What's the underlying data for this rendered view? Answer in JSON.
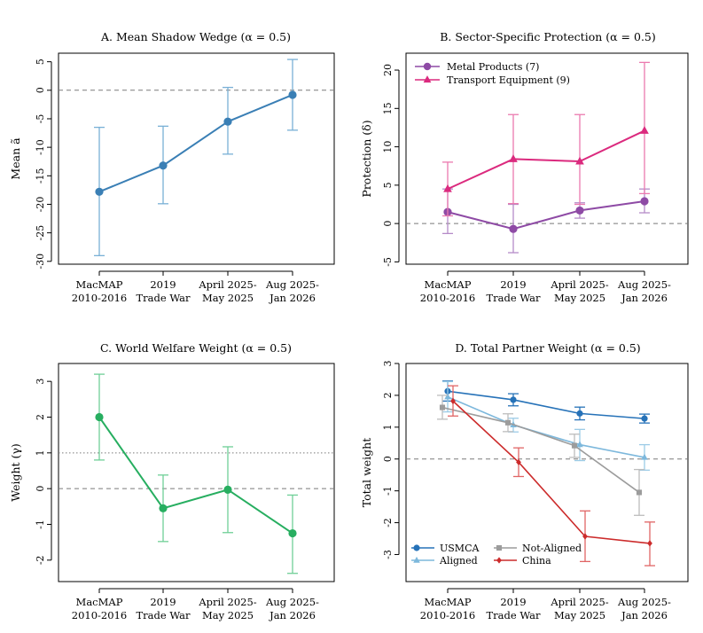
{
  "chart_data": [
    {
      "panel": "A",
      "type": "line",
      "title": "A. Mean Shadow Wedge (α = 0.5)",
      "ylabel": "Mean ã",
      "categories": [
        [
          "MacMAP",
          "2010-2016"
        ],
        [
          "2019",
          "Trade War"
        ],
        [
          "April 2025-",
          "May 2025"
        ],
        [
          "Aug 2025-",
          "Jan 2026"
        ]
      ],
      "ylim": [
        -30.5,
        6.5
      ],
      "yticks": [
        -30,
        -25,
        -20,
        -15,
        -10,
        -5,
        0,
        5
      ],
      "ref_lines": [
        {
          "y": 0,
          "style": "dashed"
        }
      ],
      "series": [
        {
          "name": "Mean shadow wedge",
          "color": "#3a7fb5",
          "err_color": "#79b0d6",
          "marker": "circle",
          "values": [
            -17.8,
            -13.2,
            -5.5,
            -0.8
          ],
          "lower": [
            -29.0,
            -19.9,
            -11.2,
            -7.0
          ],
          "upper": [
            -6.5,
            -6.3,
            0.5,
            5.4
          ]
        }
      ]
    },
    {
      "panel": "B",
      "type": "line",
      "title": "B. Sector-Specific Protection (α = 0.5)",
      "ylabel": "Protection (δ)",
      "categories": [
        [
          "MacMAP",
          "2010-2016"
        ],
        [
          "2019",
          "Trade War"
        ],
        [
          "April 2025-",
          "May 2025"
        ],
        [
          "Aug 2025-",
          "Jan 2026"
        ]
      ],
      "ylim": [
        -5.3,
        22.2
      ],
      "yticks": [
        -5,
        0,
        5,
        10,
        15,
        20
      ],
      "ref_lines": [
        {
          "y": 0,
          "style": "dashed"
        }
      ],
      "legend_position": "top-left",
      "series": [
        {
          "name": "Metal Products (7)",
          "color": "#8e4aa5",
          "err_color": "#b58bc8",
          "marker": "circle",
          "values": [
            1.5,
            -0.7,
            1.7,
            2.9
          ],
          "lower": [
            -1.3,
            -3.8,
            0.7,
            1.4
          ],
          "upper": [
            4.5,
            2.5,
            2.7,
            4.5
          ]
        },
        {
          "name": "Transport Equipment (9)",
          "color": "#db2a7e",
          "err_color": "#eb7aaf",
          "marker": "triangle",
          "values": [
            4.5,
            8.4,
            8.1,
            12.1
          ],
          "lower": [
            1.0,
            2.6,
            2.5,
            3.9
          ],
          "upper": [
            8.0,
            14.2,
            14.2,
            21.0
          ]
        }
      ]
    },
    {
      "panel": "C",
      "type": "line",
      "title": "C. World Welfare Weight (α = 0.5)",
      "ylabel": "Weight (γ)",
      "categories": [
        [
          "MacMAP",
          "2010-2016"
        ],
        [
          "2019",
          "Trade War"
        ],
        [
          "April 2025-",
          "May 2025"
        ],
        [
          "Aug 2025-",
          "Jan 2026"
        ]
      ],
      "ylim": [
        -2.6,
        3.5
      ],
      "yticks": [
        -2,
        -1,
        0,
        1,
        2,
        3
      ],
      "ref_lines": [
        {
          "y": 0,
          "style": "dashed"
        },
        {
          "y": 1,
          "style": "dotted"
        }
      ],
      "series": [
        {
          "name": "World welfare weight",
          "color": "#27ae60",
          "err_color": "#6fcf97",
          "marker": "circle",
          "values": [
            2.0,
            -0.55,
            -0.03,
            -1.25
          ],
          "lower": [
            0.8,
            -1.48,
            -1.23,
            -2.37
          ],
          "upper": [
            3.2,
            0.38,
            1.17,
            -0.18
          ]
        }
      ]
    },
    {
      "panel": "D",
      "type": "line",
      "title": "D. Total Partner Weight (α = 0.5)",
      "ylabel": "Total weight",
      "categories": [
        [
          "MacMAP",
          "2010-2016"
        ],
        [
          "2019",
          "Trade War"
        ],
        [
          "April 2025-",
          "May 2025"
        ],
        [
          "Aug 2025-",
          "Jan 2026"
        ]
      ],
      "ylim": [
        -3.85,
        3.0
      ],
      "yticks": [
        -3,
        -2,
        -1,
        0,
        1,
        2,
        3
      ],
      "ref_lines": [
        {
          "y": 0,
          "style": "dashed"
        }
      ],
      "legend_position": "bottom-left",
      "series": [
        {
          "name": "USMCA",
          "color": "#2672b8",
          "err_color": "#2672b8",
          "marker": "circle",
          "offset": 0,
          "values": [
            2.13,
            1.86,
            1.43,
            1.27
          ],
          "lower": [
            1.82,
            1.67,
            1.23,
            1.13
          ],
          "upper": [
            2.45,
            2.05,
            1.63,
            1.41
          ]
        },
        {
          "name": "Aligned",
          "color": "#7db8dc",
          "err_color": "#9ccbe6",
          "marker": "triangle",
          "offset": 0,
          "values": [
            1.95,
            1.07,
            0.45,
            0.05
          ],
          "lower": [
            1.48,
            0.85,
            -0.05,
            -0.35
          ],
          "upper": [
            2.43,
            1.28,
            0.93,
            0.45
          ]
        },
        {
          "name": "Not-Aligned",
          "color": "#9c9c9c",
          "err_color": "#bdbdbd",
          "marker": "square",
          "offset": -0.1,
          "values": [
            1.62,
            1.14,
            0.42,
            -1.05
          ],
          "lower": [
            1.25,
            0.86,
            0.05,
            -1.77
          ],
          "upper": [
            2.0,
            1.42,
            0.78,
            -0.33
          ]
        },
        {
          "name": "China",
          "color": "#cc2b2b",
          "err_color": "#e06565",
          "marker": "diamond",
          "offset": 0.1,
          "values": [
            1.82,
            -0.1,
            -2.43,
            -2.65
          ],
          "lower": [
            1.35,
            -0.55,
            -3.22,
            -3.35
          ],
          "upper": [
            2.3,
            0.35,
            -1.63,
            -1.98
          ]
        }
      ]
    }
  ]
}
